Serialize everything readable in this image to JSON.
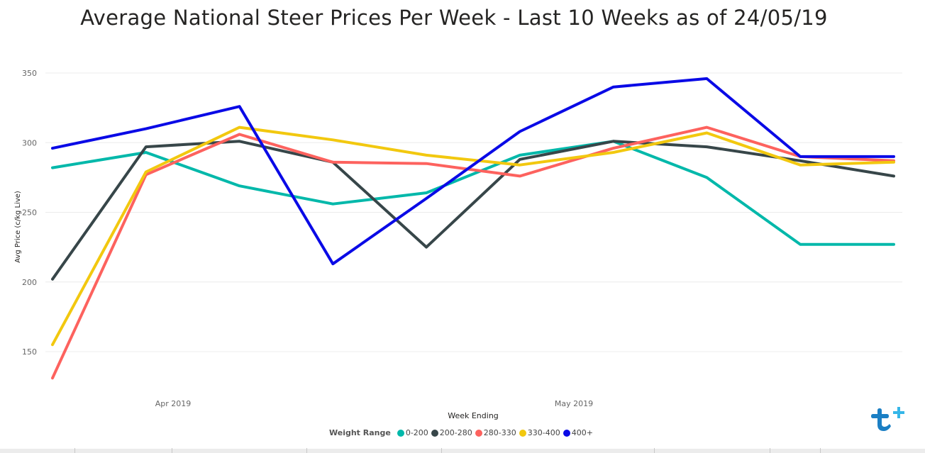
{
  "chart_data": {
    "type": "line",
    "title": "Average National Steer Prices Per Week - Last 10 Weeks as of 24/05/19",
    "xlabel": "Week Ending",
    "ylabel": "Avg Price (c/kg Live)",
    "x_tick_labels": [
      "Apr 2019",
      "May 2019"
    ],
    "y_ticks": [
      150,
      200,
      250,
      300,
      350
    ],
    "ylim": [
      125,
      360
    ],
    "grid": true,
    "legend_title": "Weight Range",
    "legend_position": "bottom",
    "x_count": 10,
    "series": [
      {
        "name": "0-200",
        "color": "#01B8AA",
        "values": [
          282,
          293,
          269,
          256,
          264,
          291,
          301,
          275,
          227,
          227
        ]
      },
      {
        "name": "200-280",
        "color": "#374649",
        "values": [
          202,
          297,
          301,
          286,
          225,
          288,
          301,
          297,
          287,
          276
        ]
      },
      {
        "name": "280-330",
        "color": "#FD625E",
        "values": [
          131,
          277,
          306,
          286,
          285,
          276,
          296,
          311,
          290,
          287
        ]
      },
      {
        "name": "330-400",
        "color": "#F2C80F",
        "values": [
          155,
          279,
          311,
          302,
          291,
          284,
          293,
          307,
          284,
          286
        ]
      },
      {
        "name": "400+",
        "color": "#0A0AE6",
        "values": [
          296,
          310,
          326,
          213,
          260,
          308,
          340,
          346,
          290,
          290
        ]
      }
    ]
  }
}
